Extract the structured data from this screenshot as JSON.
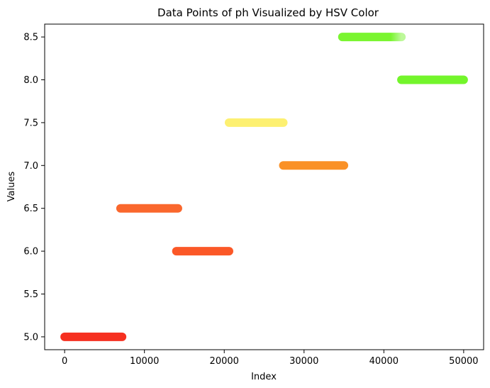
{
  "chart_data": {
    "type": "scatter",
    "title": "Data Points of ph Visualized by HSV Color",
    "xlabel": "Index",
    "ylabel": "Values",
    "xlim": [
      -2500,
      52500
    ],
    "ylim": [
      4.85,
      8.65
    ],
    "xticks": [
      0,
      10000,
      20000,
      30000,
      40000,
      50000
    ],
    "xtick_labels": [
      "0",
      "10000",
      "20000",
      "30000",
      "40000",
      "50000"
    ],
    "yticks": [
      5.0,
      5.5,
      6.0,
      6.5,
      7.0,
      7.5,
      8.0,
      8.5
    ],
    "ytick_labels": [
      "5.0",
      "5.5",
      "6.0",
      "6.5",
      "7.0",
      "7.5",
      "8.0",
      "8.5"
    ],
    "grid": false,
    "segments": [
      {
        "y": 5.0,
        "x_start": 0,
        "x_end": 7200,
        "color": "#f51a08"
      },
      {
        "y": 6.5,
        "x_start": 7000,
        "x_end": 14200,
        "color": "#f95616"
      },
      {
        "y": 6.0,
        "x_start": 14000,
        "x_end": 20600,
        "color": "#fb4610"
      },
      {
        "y": 7.5,
        "x_start": 20600,
        "x_end": 27400,
        "color": "#fdee62"
      },
      {
        "y": 7.0,
        "x_start": 27400,
        "x_end": 35000,
        "color": "#f9850f"
      },
      {
        "y": 8.5,
        "x_start": 34800,
        "x_end": 42200,
        "color": "#6cf41a",
        "end_color": "#b6f88f"
      },
      {
        "y": 8.0,
        "x_start": 42200,
        "x_end": 50000,
        "color": "#64f414"
      }
    ]
  }
}
